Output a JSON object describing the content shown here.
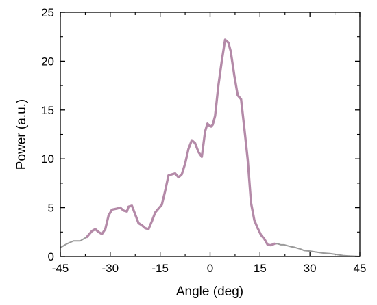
{
  "chart_data": {
    "type": "line",
    "title": "",
    "xlabel": "Angle (deg)",
    "ylabel": "Power (a.u.)",
    "xlim": [
      -45,
      45
    ],
    "ylim": [
      0,
      25
    ],
    "xticks": [
      -45,
      -30,
      -15,
      0,
      15,
      30,
      45
    ],
    "yticks": [
      0,
      5,
      10,
      15,
      20,
      25
    ],
    "xtick_labels": [
      "-45",
      "-30",
      "-15",
      "0",
      "15",
      "30",
      "45"
    ],
    "ytick_labels": [
      "0",
      "5",
      "10",
      "15",
      "20",
      "25"
    ],
    "grid": false,
    "legend": "none",
    "series": [
      {
        "color_main": "#b48aa8",
        "color_tail": "#9a9a9a",
        "x": [
          -45,
          -43,
          -41,
          -39,
          -37,
          -35.5,
          -34.5,
          -33.5,
          -32.5,
          -31.5,
          -30.5,
          -29.5,
          -28,
          -27,
          -26,
          -25,
          -24.5,
          -23.5,
          -22.5,
          -21.5,
          -20.5,
          -19.5,
          -18.5,
          -17.5,
          -16.5,
          -15.5,
          -14.5,
          -13.5,
          -12.5,
          -11.5,
          -10.5,
          -9.5,
          -8.5,
          -7.5,
          -6.5,
          -5.5,
          -4.5,
          -3.5,
          -2.5,
          -1.5,
          -0.8,
          -0.2,
          0.3,
          0.8,
          1.5,
          2.5,
          3.5,
          4.5,
          5.5,
          6.2,
          7.3,
          8.3,
          9.3,
          10.3,
          11.3,
          12.3,
          13.3,
          14.3,
          15.3,
          16.3,
          17.3,
          18.3,
          19.3,
          20.3,
          21.3,
          22.3,
          23.3,
          24.3,
          25.3,
          26.3,
          27.3,
          28.3,
          30,
          32,
          34,
          36,
          38,
          40,
          42,
          45
        ],
        "y": [
          0.9,
          1.3,
          1.6,
          1.6,
          2.0,
          2.6,
          2.8,
          2.5,
          2.3,
          2.8,
          4.2,
          4.8,
          4.9,
          5.0,
          4.7,
          4.6,
          5.1,
          5.2,
          4.3,
          3.4,
          3.2,
          2.9,
          2.8,
          3.6,
          4.5,
          4.9,
          5.3,
          6.7,
          8.3,
          8.4,
          8.5,
          8.1,
          8.4,
          9.5,
          11.0,
          11.9,
          11.6,
          10.7,
          10.2,
          12.8,
          13.6,
          13.4,
          13.3,
          13.5,
          14.4,
          17.5,
          20.0,
          22.2,
          21.9,
          21.0,
          18.5,
          16.5,
          16.1,
          13.1,
          9.9,
          5.5,
          3.7,
          2.9,
          2.2,
          1.8,
          1.2,
          1.15,
          1.3,
          1.3,
          1.2,
          1.2,
          1.1,
          1.0,
          0.95,
          0.85,
          0.75,
          0.6,
          0.55,
          0.45,
          0.35,
          0.3,
          0.2,
          0.1,
          0.05,
          0.0
        ]
      }
    ]
  }
}
